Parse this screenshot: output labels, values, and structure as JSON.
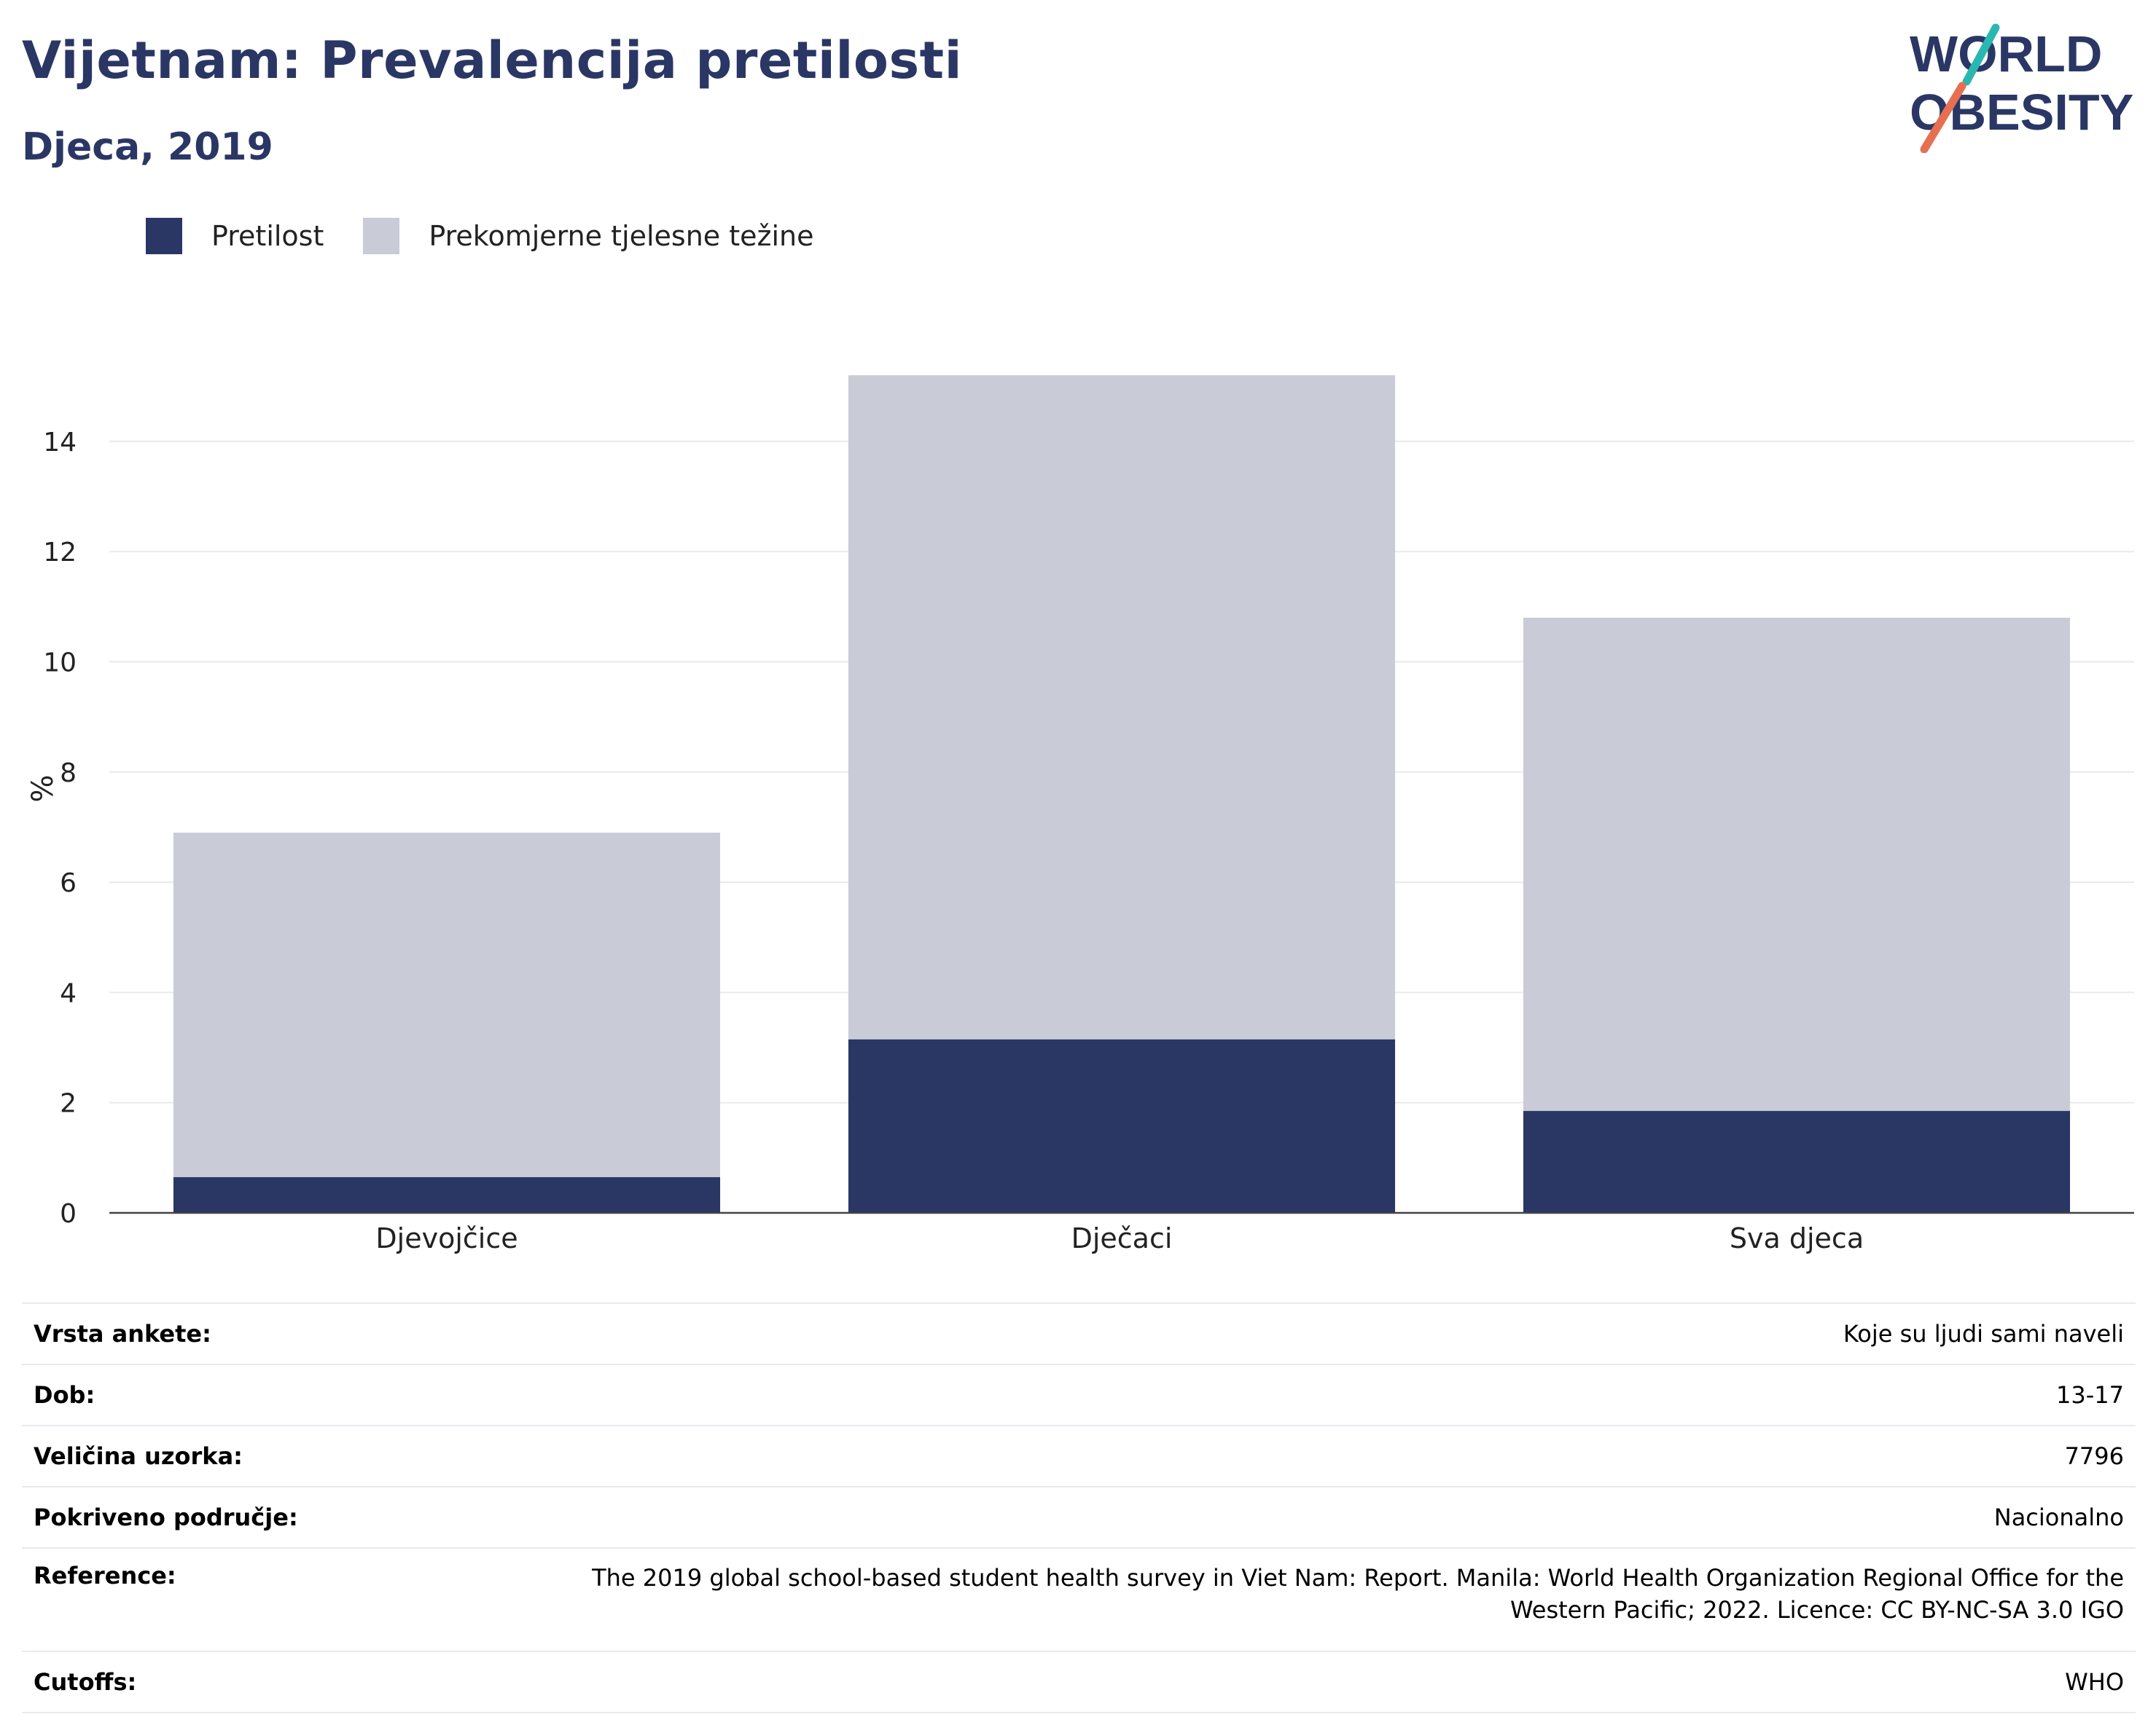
{
  "header": {
    "title": "Vijetnam: Prevalencija pretilosti",
    "subtitle": "Djeca, 2019"
  },
  "logo": {
    "line1": "WORLD",
    "line2": "OBESITY",
    "slash_top_color": "#2ab7b1",
    "slash_bottom_color": "#e76f51"
  },
  "legend": [
    {
      "label": "Pretilost",
      "color": "#2a3765"
    },
    {
      "label": "Prekomjerne tjelesne težine",
      "color": "#c9cbd6"
    }
  ],
  "chart_data": {
    "type": "bar",
    "stacked": true,
    "categories": [
      "Djevojčice",
      "Dječaci",
      "Sva djeca"
    ],
    "series": [
      {
        "name": "Pretilost",
        "values": [
          0.65,
          3.15,
          1.85
        ],
        "color": "#2a3765"
      },
      {
        "name": "Prekomjerne tjelesne težine",
        "values": [
          6.25,
          12.05,
          8.95
        ],
        "color": "#c9cbd6"
      }
    ],
    "ylabel": "%",
    "ylim": [
      0,
      15.4
    ],
    "yticks": [
      0,
      2,
      4,
      6,
      8,
      10,
      12,
      14
    ],
    "grid": true,
    "legend_position": "top-left"
  },
  "info": [
    {
      "key": "Vrsta ankete:",
      "value": "Koje su ljudi sami naveli"
    },
    {
      "key": "Dob:",
      "value": "13-17"
    },
    {
      "key": "Veličina uzorka:",
      "value": "7796"
    },
    {
      "key": "Pokriveno područje:",
      "value": "Nacionalno"
    },
    {
      "key": "Reference:",
      "value_line1": "The 2019 global school-based student health survey in Viet Nam: Report. Manila: World Health Organization Regional Office for the",
      "value_line2": "Western Pacific; 2022. Licence: CC BY-NC-SA 3.0 IGO"
    },
    {
      "key": "Cutoffs:",
      "value": "WHO"
    }
  ]
}
